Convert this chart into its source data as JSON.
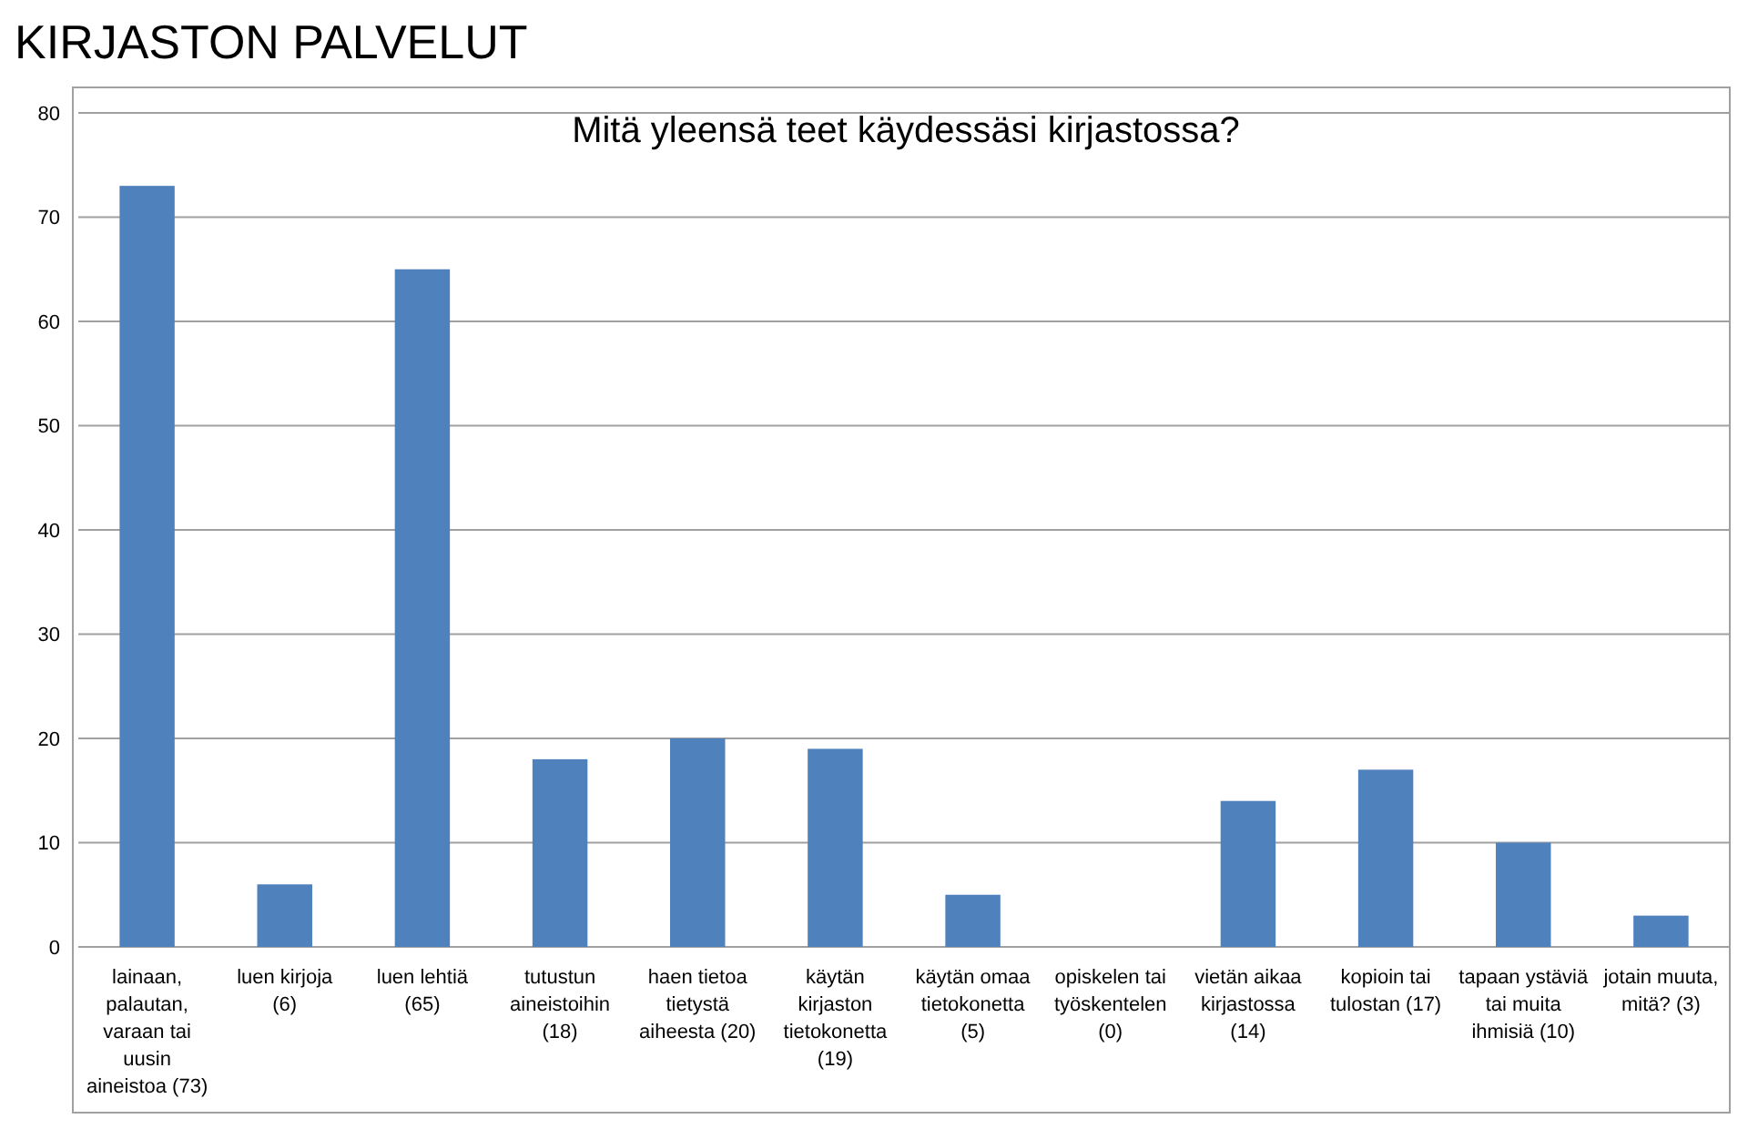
{
  "chart_data": {
    "type": "bar",
    "title": "KIRJASTON PALVELUT",
    "subtitle": "Mitä yleensä teet käydessäsi kirjastossa?",
    "categories": [
      "lainaan, palautan, varaan tai uusin aineistoa (73)",
      "luen kirjoja (6)",
      "luen lehtiä (65)",
      "tutustun aineistoihin (18)",
      "haen tietoa tietystä aiheesta (20)",
      "käytän kirjaston tietokonetta (19)",
      "käytän omaa tietokonetta (5)",
      "opiskelen tai työskentelen (0)",
      "vietän aikaa kirjastossa (14)",
      "kopioin tai tulostan (17)",
      "tapaan ystäviä tai muita ihmisiä (10)",
      "jotain muuta, mitä? (3)"
    ],
    "values": [
      73,
      6,
      65,
      18,
      20,
      19,
      5,
      0,
      14,
      17,
      10,
      3
    ],
    "color": "#4f81bd",
    "ylim": [
      0,
      80
    ],
    "yticks": [
      0,
      10,
      20,
      30,
      40,
      50,
      60,
      70,
      80
    ],
    "grid": "y"
  }
}
